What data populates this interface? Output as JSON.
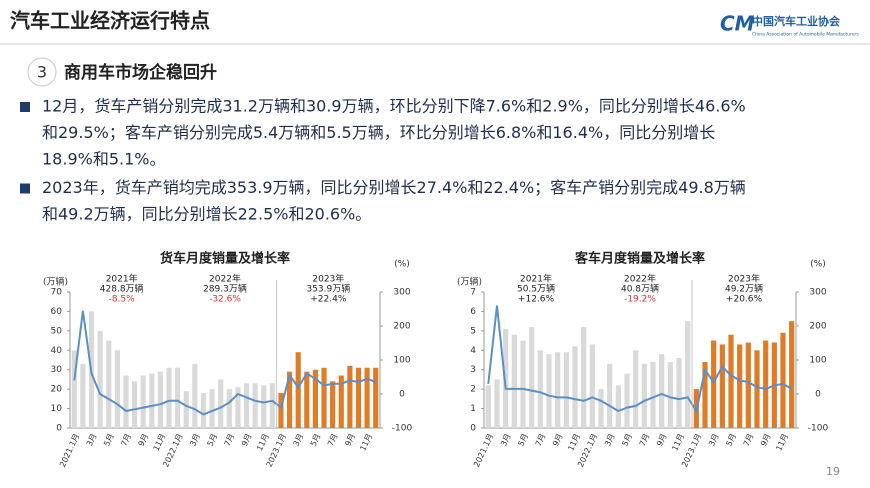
{
  "header": {
    "title": "汽车工业经济运行特点",
    "logo_cn": "中国汽车工业协会",
    "logo_en": "China Association of Automobile Manufacturers"
  },
  "section": {
    "number": "3",
    "title": "商用车市场企稳回升"
  },
  "bullets": [
    [
      "12月，货车产销分别完成31.2万辆和30.9万辆，环比分别下降7.6%和2.9%，同比分别增长46.6%",
      "和29.5%；客车产销分别完成5.4万辆和5.5万辆，环比分别增长6.8%和16.4%，同比分别增长",
      "18.9%和5.1%。"
    ],
    [
      "2023年，货车产销均完成353.9万辆，同比分别增长27.4%和22.4%；客车产销分别完成49.8万辆",
      "和49.2万辆，同比分别增长22.5%和20.6%。"
    ]
  ],
  "page_number": "19",
  "chart_data": [
    {
      "type": "bar",
      "title": "货车月度销量及增长率",
      "y_label": "(万辆)",
      "y2_label": "(%)",
      "categories": [
        "2021.1月",
        null,
        "3月",
        null,
        "5月",
        null,
        "7月",
        null,
        "9月",
        null,
        "11月",
        null,
        "2022.1月",
        null,
        "3月",
        null,
        "5月",
        null,
        "7月",
        null,
        "9月",
        null,
        "11月",
        null,
        "2023.1月",
        null,
        "3月",
        null,
        "5月",
        null,
        "7月",
        null,
        "9月",
        null,
        "11月",
        null
      ],
      "series": [
        {
          "type": "bar",
          "color": "#d9d9d9",
          "values": [
            40,
            33,
            60,
            50,
            45,
            40,
            27,
            24,
            27,
            28,
            29,
            31,
            31,
            19,
            33,
            18,
            20,
            25,
            20,
            21,
            23,
            23,
            22,
            23,
            null,
            null,
            null,
            null,
            null,
            null,
            null,
            null,
            null,
            null,
            null,
            null
          ]
        },
        {
          "type": "bar",
          "color": "#e07b28",
          "values": [
            null,
            null,
            null,
            null,
            null,
            null,
            null,
            null,
            null,
            null,
            null,
            null,
            null,
            null,
            null,
            null,
            null,
            null,
            null,
            null,
            null,
            null,
            null,
            null,
            18,
            29,
            39,
            29,
            30,
            31,
            24,
            27,
            32,
            31,
            31,
            31
          ]
        },
        {
          "type": "line",
          "axis": "y2",
          "color": "#5b8fc7",
          "values": [
            40,
            245,
            60,
            0,
            -15,
            -30,
            -50,
            -45,
            -40,
            -35,
            -30,
            -20,
            -20,
            -35,
            -45,
            -60,
            -50,
            -40,
            -25,
            0,
            -10,
            -20,
            -25,
            -20,
            -40,
            55,
            20,
            60,
            45,
            25,
            30,
            30,
            40,
            35,
            45,
            35
          ]
        }
      ],
      "ylim": [
        0,
        70
      ],
      "yticks": [
        0,
        10,
        20,
        30,
        40,
        50,
        60,
        70
      ],
      "y2lim": [
        -100,
        300
      ],
      "y2ticks": [
        -100,
        0,
        100,
        200,
        300
      ],
      "annotations": [
        {
          "year": "2021年",
          "total": "428.8万辆",
          "growth": "-8.5%",
          "color": "#e03030"
        },
        {
          "year": "2022年",
          "total": "289.3万辆",
          "growth": "-32.6%",
          "color": "#e03030"
        },
        {
          "year": "2023年",
          "total": "353.9万辆",
          "growth": "+22.4%",
          "color": "#222222"
        }
      ]
    },
    {
      "type": "bar",
      "title": "客车月度销量及增长率",
      "y_label": "(万辆)",
      "y2_label": "(%)",
      "categories": [
        "2021.1月",
        null,
        "3月",
        null,
        "5月",
        null,
        "7月",
        null,
        "9月",
        null,
        "11月",
        null,
        "2022.1月",
        null,
        "3月",
        null,
        "5月",
        null,
        "7月",
        null,
        "9月",
        null,
        "11月",
        null,
        "2023.1月",
        null,
        "3月",
        null,
        "5月",
        null,
        "7月",
        null,
        "9月",
        null,
        "11月",
        null
      ],
      "series": [
        {
          "type": "bar",
          "color": "#d9d9d9",
          "values": [
            2.2,
            2.5,
            5.1,
            4.8,
            4.5,
            5.2,
            4.0,
            3.8,
            3.9,
            3.9,
            4.2,
            5.2,
            4.3,
            2.0,
            3.3,
            2.2,
            2.8,
            4.0,
            3.3,
            3.4,
            3.8,
            3.4,
            3.6,
            5.5,
            null,
            null,
            null,
            null,
            null,
            null,
            null,
            null,
            null,
            null,
            null,
            null
          ]
        },
        {
          "type": "bar",
          "color": "#e07b28",
          "values": [
            null,
            null,
            null,
            null,
            null,
            null,
            null,
            null,
            null,
            null,
            null,
            null,
            null,
            null,
            null,
            null,
            null,
            null,
            null,
            null,
            null,
            null,
            null,
            null,
            2.0,
            3.4,
            4.5,
            4.3,
            4.8,
            4.3,
            4.4,
            4.0,
            4.5,
            4.4,
            4.9,
            5.5
          ]
        },
        {
          "type": "line",
          "axis": "y2",
          "color": "#5b8fc7",
          "values": [
            30,
            260,
            15,
            15,
            15,
            10,
            5,
            -5,
            -10,
            -10,
            -15,
            -20,
            -10,
            -20,
            -35,
            -50,
            -40,
            -35,
            -20,
            -10,
            0,
            -10,
            -15,
            -10,
            -50,
            70,
            35,
            80,
            55,
            40,
            35,
            20,
            15,
            25,
            30,
            15
          ]
        }
      ],
      "ylim": [
        0,
        7
      ],
      "yticks": [
        0,
        1,
        2,
        3,
        4,
        5,
        6,
        7
      ],
      "y2lim": [
        -100,
        300
      ],
      "y2ticks": [
        -100,
        0,
        100,
        200,
        300
      ],
      "annotations": [
        {
          "year": "2021年",
          "total": "50.5万辆",
          "growth": "+12.6%",
          "color": "#222222"
        },
        {
          "year": "2022年",
          "total": "40.8万辆",
          "growth": "-19.2%",
          "color": "#e03030"
        },
        {
          "year": "2023年",
          "total": "49.2万辆",
          "growth": "+20.6%",
          "color": "#222222"
        }
      ]
    }
  ]
}
